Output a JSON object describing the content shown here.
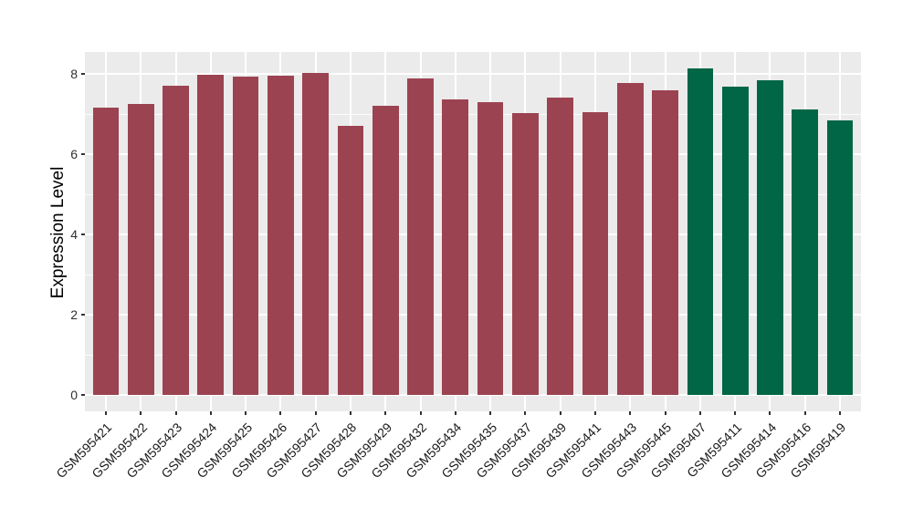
{
  "chart_data": {
    "type": "bar",
    "title": "",
    "xlabel": "",
    "ylabel": "Expression Level",
    "ylim": [
      0,
      8.55
    ],
    "yticks_major": [
      0,
      2,
      4,
      6,
      8
    ],
    "yticks_minor": [
      1,
      3,
      5,
      7
    ],
    "grid": "on",
    "legend_position": "none",
    "panel_background": "#EBEBEB",
    "gridline_color": "#FFFFFF",
    "axis_text_color": "#303030",
    "group_colors": [
      "#9C4351",
      "#006646"
    ],
    "categories": [
      "GSM595421",
      "GSM595422",
      "GSM595423",
      "GSM595424",
      "GSM595425",
      "GSM595426",
      "GSM595427",
      "GSM595428",
      "GSM595429",
      "GSM595432",
      "GSM595434",
      "GSM595435",
      "GSM595437",
      "GSM595439",
      "GSM595441",
      "GSM595443",
      "GSM595445",
      "GSM595407",
      "GSM595411",
      "GSM595414",
      "GSM595416",
      "GSM595419"
    ],
    "values": [
      7.17,
      7.24,
      7.7,
      7.97,
      7.93,
      7.95,
      8.02,
      6.7,
      7.2,
      7.88,
      7.36,
      7.3,
      7.02,
      7.41,
      7.05,
      7.77,
      7.58,
      8.14,
      7.68,
      7.84,
      7.11,
      6.85
    ],
    "bar_group_index": [
      0,
      0,
      0,
      0,
      0,
      0,
      0,
      0,
      0,
      0,
      0,
      0,
      0,
      0,
      0,
      0,
      0,
      1,
      1,
      1,
      1,
      1
    ]
  }
}
